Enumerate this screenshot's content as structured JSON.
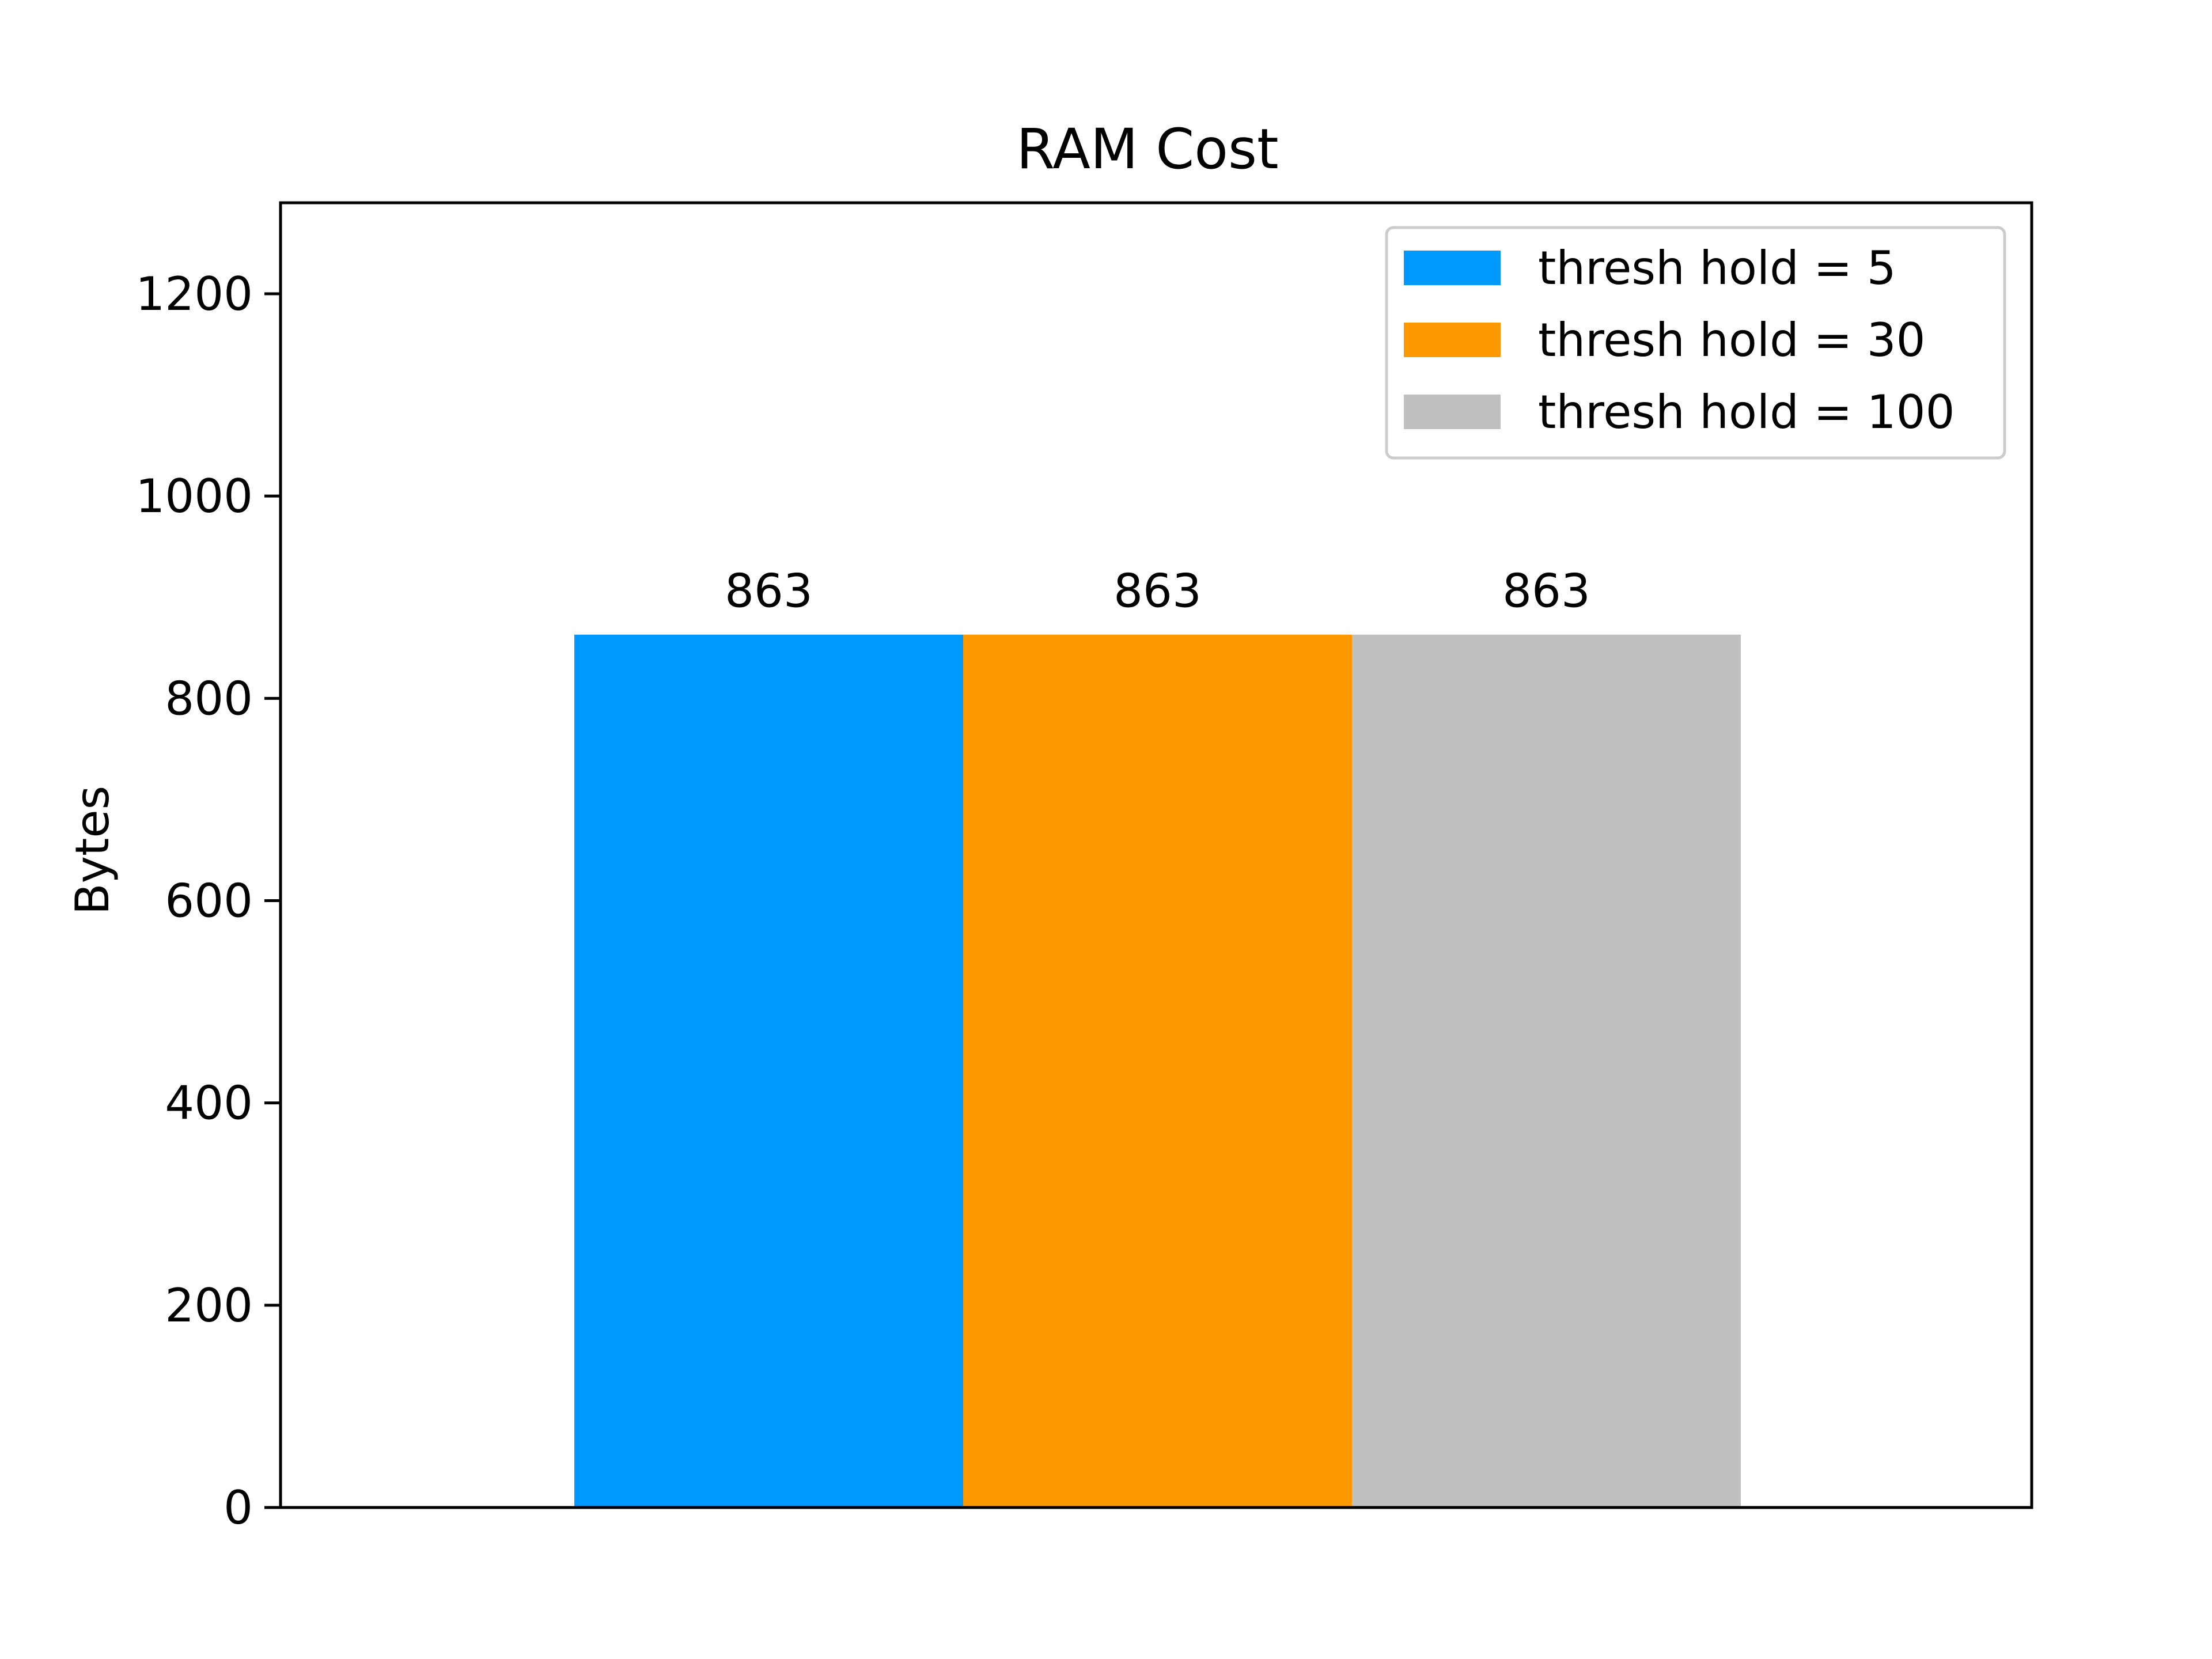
{
  "chart_data": {
    "type": "bar",
    "title": "RAM Cost",
    "xlabel": "",
    "ylabel": "Bytes",
    "ylim": [
      0,
      1290
    ],
    "yticks": [
      0,
      200,
      400,
      600,
      800,
      1000,
      1200
    ],
    "grid": false,
    "legend_position": "top-right",
    "categories": [
      ""
    ],
    "series": [
      {
        "name": "thresh hold = 5",
        "values": [
          863
        ],
        "color": "#0099ff",
        "label": "863"
      },
      {
        "name": "thresh hold = 30",
        "values": [
          863
        ],
        "color": "#ff9900",
        "label": "863"
      },
      {
        "name": "thresh hold = 100",
        "values": [
          863
        ],
        "color": "#c0c0c0",
        "label": "863"
      }
    ]
  }
}
